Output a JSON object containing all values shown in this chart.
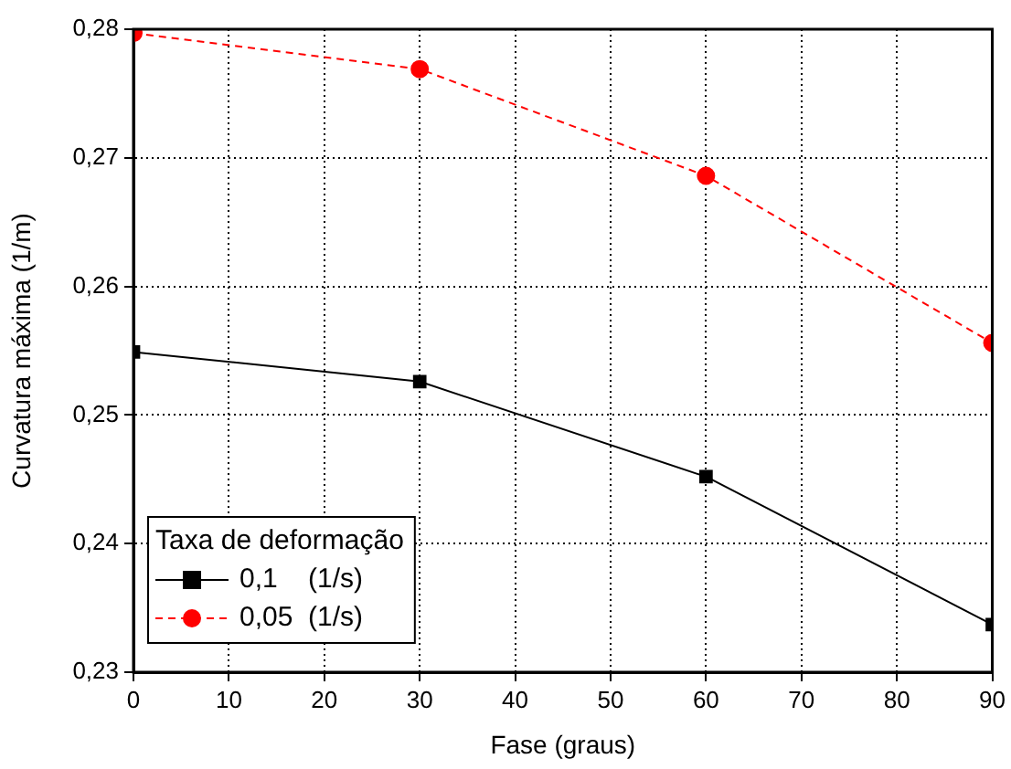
{
  "chart_data": {
    "type": "line",
    "xlabel": "Fase (graus)",
    "ylabel": "Curvatura máxima (1/m)",
    "legend_title": "Taxa de deformação",
    "legend": "bottom left",
    "grid": true,
    "x": [
      0,
      30,
      60,
      90
    ],
    "series": [
      {
        "name": "0,1    (1/s)",
        "color": "#000000",
        "marker": "square",
        "line_style": "solid",
        "values": [
          0.2549,
          0.2526,
          0.2452,
          0.2337
        ]
      },
      {
        "name": "0,05  (1/s)",
        "color": "#ff0000",
        "marker": "circle",
        "line_style": "dashed",
        "values": [
          0.2797,
          0.2769,
          0.2686,
          0.2556
        ]
      }
    ],
    "xlim": [
      0,
      90
    ],
    "xticks": [
      0,
      10,
      20,
      30,
      40,
      50,
      60,
      70,
      80,
      90
    ],
    "ylim": [
      0.23,
      0.28
    ],
    "yticks": [
      {
        "value": 0.23,
        "label": "0,23"
      },
      {
        "value": 0.24,
        "label": "0,24"
      },
      {
        "value": 0.25,
        "label": "0,25"
      },
      {
        "value": 0.26,
        "label": "0,26"
      },
      {
        "value": 0.27,
        "label": "0,27"
      },
      {
        "value": 0.28,
        "label": "0,28"
      }
    ]
  }
}
